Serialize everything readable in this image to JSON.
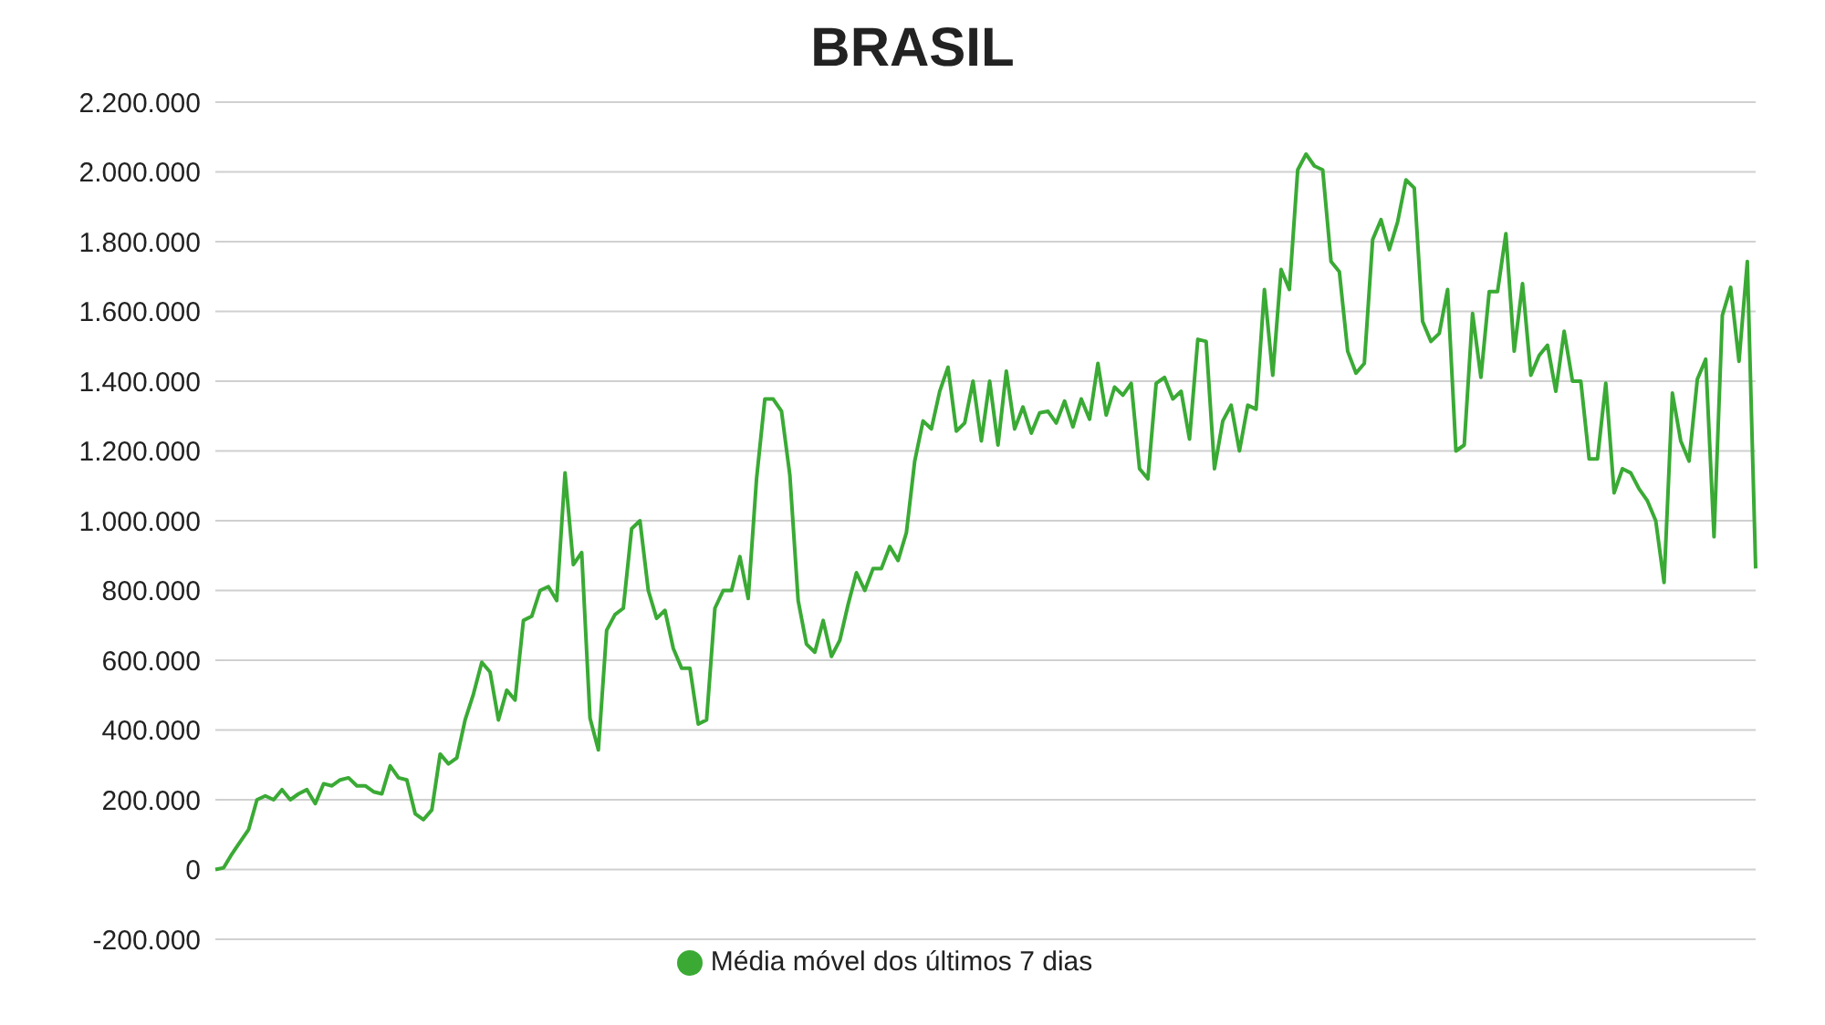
{
  "chart_data": {
    "type": "line",
    "title": "BRASIL",
    "legend": "bottom",
    "grid": "y",
    "marker": "none",
    "line_style": "solid",
    "tick_labels": "y",
    "ylim": [
      -200000,
      2200000
    ],
    "yticks": [
      {
        "value": -200000,
        "label": "-200.000"
      },
      {
        "value": 0,
        "label": "0"
      },
      {
        "value": 200000,
        "label": "200.000"
      },
      {
        "value": 400000,
        "label": "400.000"
      },
      {
        "value": 600000,
        "label": "600.000"
      },
      {
        "value": 800000,
        "label": "800.000"
      },
      {
        "value": 1000000,
        "label": "1.000.000"
      },
      {
        "value": 1200000,
        "label": "1.200.000"
      },
      {
        "value": 1400000,
        "label": "1.400.000"
      },
      {
        "value": 1600000,
        "label": "1.600.000"
      },
      {
        "value": 1800000,
        "label": "1.800.000"
      },
      {
        "value": 2000000,
        "label": "2.000.000"
      },
      {
        "value": 2200000,
        "label": "2.200.000"
      }
    ],
    "categories": [
      null,
      null,
      null,
      null,
      null,
      null,
      null,
      null,
      null,
      null,
      null,
      null,
      null,
      null,
      null,
      null,
      null,
      null,
      null,
      null,
      null,
      null,
      null,
      null,
      null,
      null,
      null,
      null,
      null,
      null,
      null,
      null,
      null,
      null,
      null,
      null,
      null,
      null,
      null,
      null,
      null,
      null,
      null,
      null,
      null,
      null,
      null,
      null,
      null,
      null,
      null,
      null,
      null,
      null,
      null,
      null,
      null,
      null,
      null,
      null,
      null,
      null,
      null,
      null,
      null,
      null,
      null,
      null,
      null,
      null,
      null,
      null,
      null,
      null,
      null,
      null,
      null,
      null,
      null,
      null,
      null,
      null,
      null,
      null,
      null,
      null,
      null,
      null,
      null,
      null,
      null,
      null,
      null,
      null,
      null,
      null,
      null,
      null,
      null,
      null,
      null,
      null,
      null,
      null,
      null,
      null,
      null,
      null,
      null,
      null,
      null,
      null,
      null,
      null,
      null,
      null,
      null,
      null,
      null,
      null,
      null,
      null,
      null,
      null,
      null,
      null,
      null,
      null,
      null,
      null,
      null,
      null,
      null,
      null,
      null,
      null,
      null,
      null,
      null,
      null,
      null,
      null,
      null,
      null,
      null,
      null,
      null,
      null,
      null,
      null,
      null,
      null,
      null,
      null,
      null,
      null,
      null,
      null,
      null,
      null,
      null,
      null,
      null,
      null,
      null,
      null,
      null,
      null,
      null,
      null,
      null,
      null,
      null,
      null,
      null,
      null,
      null,
      null,
      null,
      null,
      null,
      null,
      null,
      null,
      null,
      null
    ],
    "series": [
      {
        "name": "Média móvel dos últimos 7 dias",
        "color": "#3aaa35",
        "values": [
          0,
          5000,
          45000,
          80000,
          115000,
          200000,
          211000,
          200000,
          229000,
          200000,
          217000,
          229000,
          189000,
          246000,
          240000,
          257000,
          263000,
          240000,
          240000,
          223000,
          217000,
          297000,
          263000,
          257000,
          160000,
          143000,
          171000,
          331000,
          303000,
          320000,
          429000,
          503000,
          594000,
          566000,
          429000,
          514000,
          486000,
          714000,
          726000,
          800000,
          811000,
          771000,
          1137000,
          874000,
          909000,
          434000,
          343000,
          686000,
          731000,
          749000,
          977000,
          1000000,
          800000,
          720000,
          743000,
          634000,
          577000,
          577000,
          417000,
          429000,
          749000,
          800000,
          800000,
          897000,
          777000,
          1120000,
          1349000,
          1349000,
          1314000,
          1131000,
          771000,
          646000,
          623000,
          714000,
          611000,
          657000,
          760000,
          851000,
          800000,
          863000,
          863000,
          926000,
          886000,
          966000,
          1171000,
          1286000,
          1263000,
          1371000,
          1440000,
          1257000,
          1280000,
          1400000,
          1229000,
          1400000,
          1217000,
          1429000,
          1263000,
          1326000,
          1251000,
          1309000,
          1314000,
          1280000,
          1343000,
          1269000,
          1349000,
          1291000,
          1451000,
          1303000,
          1383000,
          1360000,
          1394000,
          1149000,
          1120000,
          1394000,
          1411000,
          1349000,
          1371000,
          1234000,
          1520000,
          1514000,
          1149000,
          1286000,
          1331000,
          1200000,
          1331000,
          1320000,
          1663000,
          1417000,
          1720000,
          1663000,
          2006000,
          2051000,
          2017000,
          2006000,
          1743000,
          1714000,
          1486000,
          1423000,
          1451000,
          1806000,
          1863000,
          1777000,
          1857000,
          1977000,
          1954000,
          1571000,
          1514000,
          1537000,
          1663000,
          1200000,
          1217000,
          1594000,
          1411000,
          1657000,
          1657000,
          1823000,
          1486000,
          1680000,
          1417000,
          1474000,
          1503000,
          1371000,
          1543000,
          1400000,
          1400000,
          1177000,
          1177000,
          1394000,
          1080000,
          1149000,
          1137000,
          1091000,
          1057000,
          1000000,
          823000,
          1366000,
          1229000,
          1171000,
          1406000,
          1463000,
          954000,
          1589000,
          1669000,
          1457000,
          1743000,
          863000
        ]
      }
    ]
  }
}
